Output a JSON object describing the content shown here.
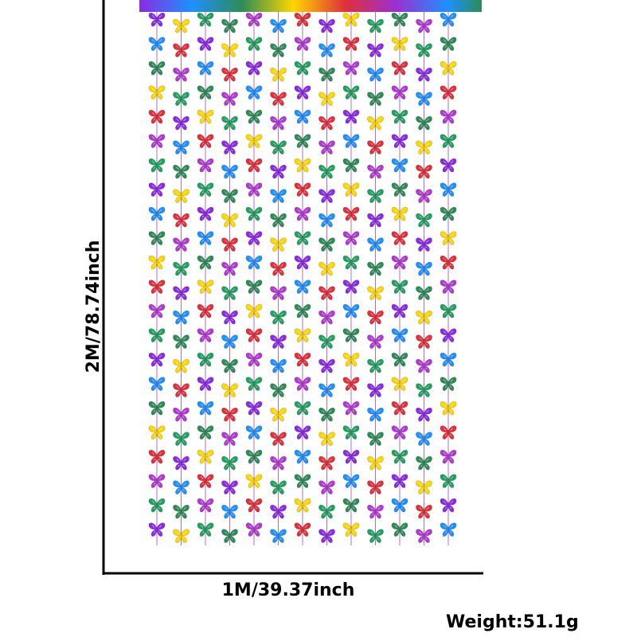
{
  "dimensions": {
    "height": "2M/78.74inch",
    "width": "1M/39.37inch"
  },
  "weight": "Weight:51.1g"
}
